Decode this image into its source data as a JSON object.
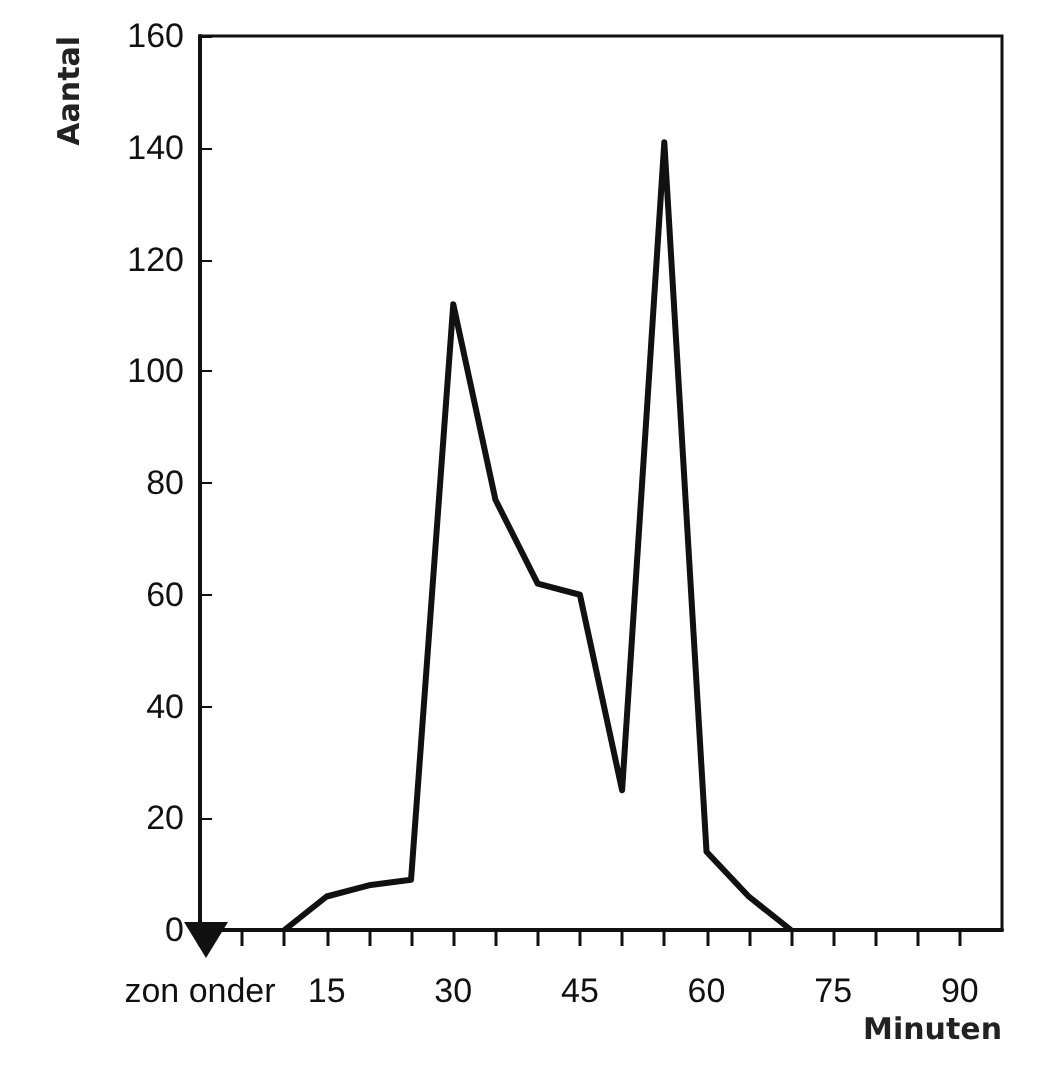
{
  "chart_data": {
    "type": "line",
    "ylabel": "Aantal",
    "xlabel": "Minuten",
    "x": [
      10,
      15,
      20,
      25,
      30,
      35,
      40,
      45,
      50,
      55,
      60,
      65,
      70
    ],
    "series": [
      {
        "color": "#111111",
        "values": [
          0,
          6,
          8,
          9,
          112,
          77,
          62,
          60,
          25,
          141,
          14,
          6,
          0
        ]
      }
    ],
    "xlim": [
      0,
      95
    ],
    "xticks": [
      {
        "value": 0,
        "label": "zon onder"
      },
      {
        "value": 5,
        "label": null
      },
      {
        "value": 10,
        "label": null
      },
      15,
      {
        "value": 20,
        "label": null
      },
      {
        "value": 25,
        "label": null
      },
      30,
      {
        "value": 35,
        "label": null
      },
      {
        "value": 40,
        "label": null
      },
      45,
      {
        "value": 50,
        "label": null
      },
      {
        "value": 55,
        "label": null
      },
      60,
      {
        "value": 65,
        "label": null
      },
      {
        "value": 70,
        "label": null
      },
      75,
      {
        "value": 80,
        "label": null
      },
      {
        "value": 85,
        "label": null
      },
      90
    ],
    "ylim": [
      0,
      160
    ],
    "yticks": [
      0,
      20,
      40,
      60,
      80,
      100,
      120,
      140,
      160
    ],
    "grid": false,
    "marker": "none",
    "line_style": "solid"
  }
}
